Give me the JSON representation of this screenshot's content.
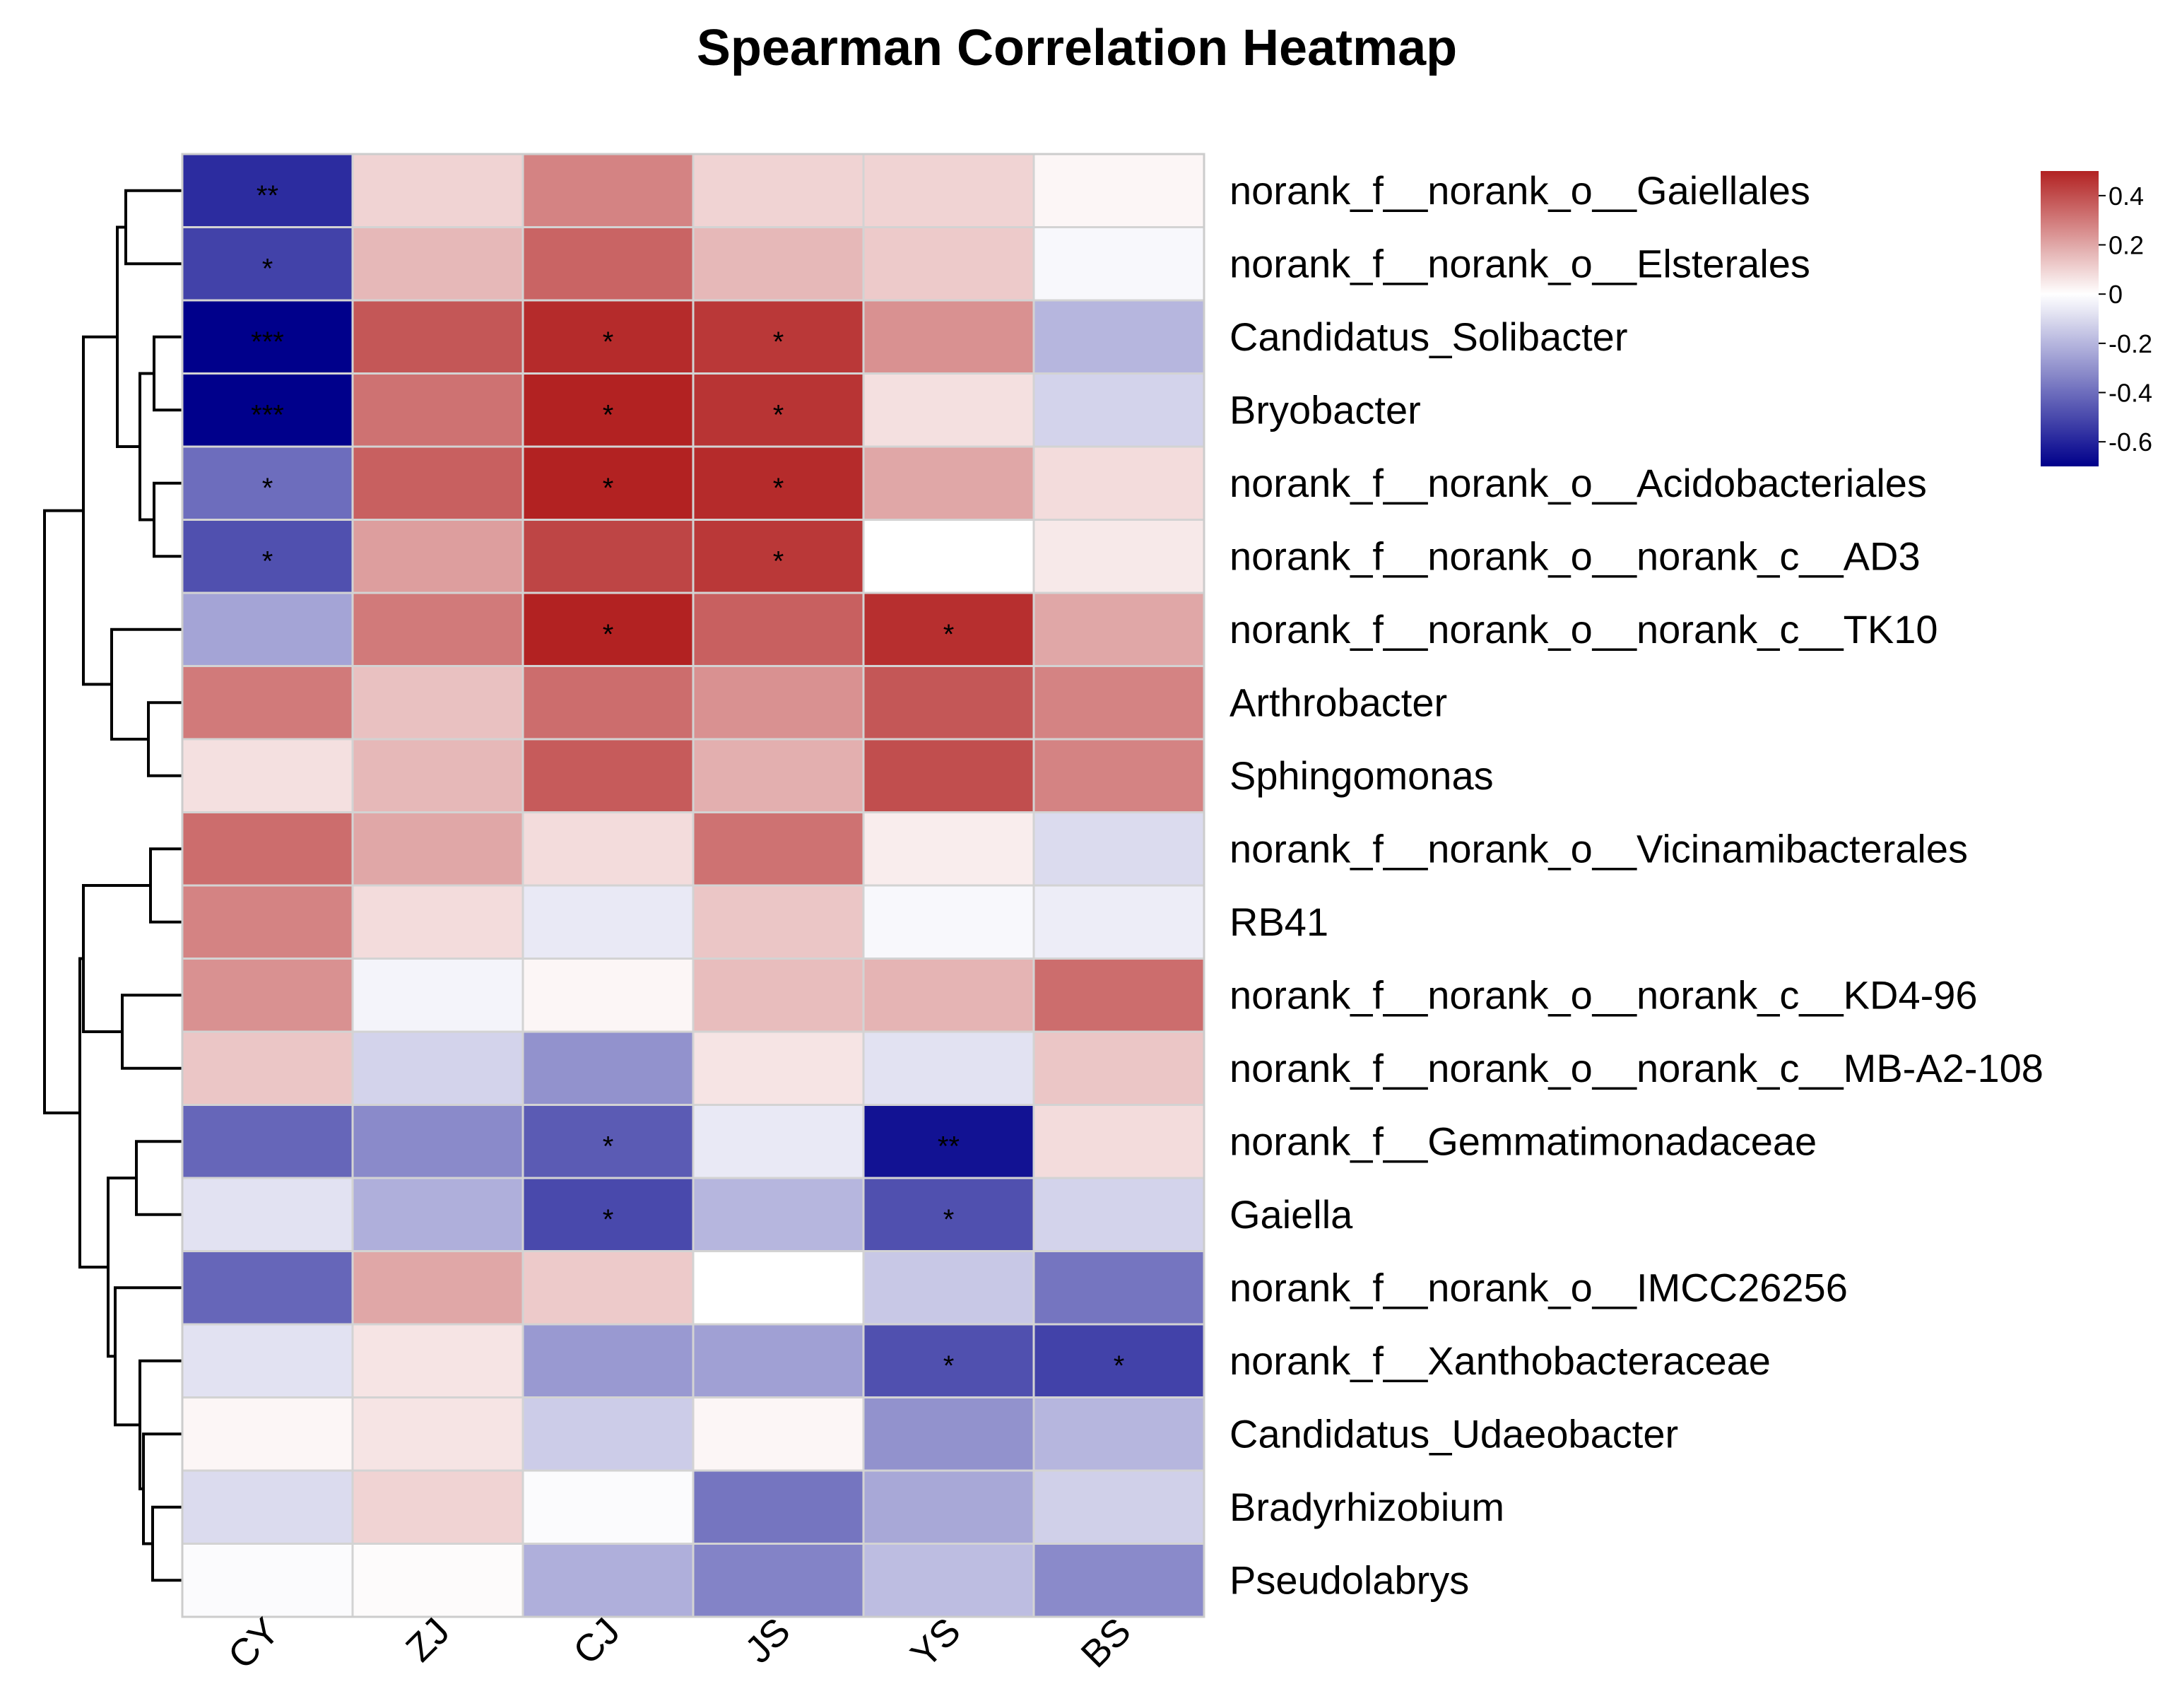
{
  "chart_data": {
    "type": "heatmap",
    "title": "Spearman Correlation Heatmap",
    "columns": [
      "CY",
      "ZJ",
      "CJ",
      "JS",
      "YS",
      "BS"
    ],
    "rows": [
      "norank_f__norank_o__Gaiellales",
      "norank_f__norank_o__Elsterales",
      "Candidatus_Solibacter",
      "Bryobacter",
      "norank_f__norank_o__Acidobacteriales",
      "norank_f__norank_o__norank_c__AD3",
      "norank_f__norank_o__norank_c__TK10",
      "Arthrobacter",
      "Sphingomonas",
      "norank_f__norank_o__Vicinamibacterales",
      "RB41",
      "norank_f__norank_o__norank_c__KD4-96",
      "norank_f__norank_o__norank_c__MB-A2-108",
      "norank_f__Gemmatimonadaceae",
      "Gaiella",
      "norank_f__norank_o__IMCC26256",
      "norank_f__Xanthobacteraceae",
      "Candidatus_Udaeobacter",
      "Bradyrhizobium",
      "Pseudolabrys"
    ],
    "values": [
      [
        -0.58,
        0.1,
        0.28,
        0.1,
        0.1,
        0.02
      ],
      [
        -0.52,
        0.16,
        0.35,
        0.16,
        0.12,
        -0.02
      ],
      [
        -0.7,
        0.38,
        0.48,
        0.45,
        0.25,
        -0.2
      ],
      [
        -0.7,
        0.32,
        0.5,
        0.46,
        0.07,
        -0.12
      ],
      [
        -0.4,
        0.36,
        0.5,
        0.48,
        0.2,
        0.08
      ],
      [
        -0.48,
        0.22,
        0.42,
        0.45,
        0.0,
        0.05
      ],
      [
        -0.25,
        0.3,
        0.5,
        0.36,
        0.47,
        0.2
      ],
      [
        0.3,
        0.14,
        0.33,
        0.25,
        0.38,
        0.28
      ],
      [
        0.07,
        0.16,
        0.37,
        0.18,
        0.4,
        0.28
      ],
      [
        0.33,
        0.2,
        0.08,
        0.32,
        0.04,
        -0.1
      ],
      [
        0.28,
        0.08,
        -0.06,
        0.13,
        -0.02,
        -0.05
      ],
      [
        0.25,
        -0.03,
        0.02,
        0.15,
        0.17,
        0.33
      ],
      [
        0.13,
        -0.12,
        -0.3,
        0.06,
        -0.08,
        0.13
      ],
      [
        -0.42,
        -0.32,
        -0.45,
        -0.06,
        -0.65,
        0.08
      ],
      [
        -0.08,
        -0.22,
        -0.5,
        -0.2,
        -0.48,
        -0.12
      ],
      [
        -0.42,
        0.2,
        0.12,
        0.0,
        -0.15,
        -0.38
      ],
      [
        -0.08,
        0.06,
        -0.28,
        -0.26,
        -0.48,
        -0.52
      ],
      [
        0.02,
        0.06,
        -0.14,
        0.02,
        -0.3,
        -0.2
      ],
      [
        -0.1,
        0.1,
        -0.01,
        -0.38,
        -0.24,
        -0.13
      ],
      [
        -0.01,
        0.01,
        -0.22,
        -0.34,
        -0.18,
        -0.32
      ]
    ],
    "significance": [
      [
        "**",
        "",
        "",
        "",
        "",
        ""
      ],
      [
        "*",
        "",
        "",
        "",
        "",
        ""
      ],
      [
        "***",
        "",
        "*",
        "*",
        "",
        ""
      ],
      [
        "***",
        "",
        "*",
        "*",
        "",
        ""
      ],
      [
        "*",
        "",
        "*",
        "*",
        "",
        ""
      ],
      [
        "*",
        "",
        "",
        "*",
        "",
        ""
      ],
      [
        "",
        "",
        "*",
        "",
        "*",
        ""
      ],
      [
        "",
        "",
        "",
        "",
        "",
        ""
      ],
      [
        "",
        "",
        "",
        "",
        "",
        ""
      ],
      [
        "",
        "",
        "",
        "",
        "",
        ""
      ],
      [
        "",
        "",
        "",
        "",
        "",
        ""
      ],
      [
        "",
        "",
        "",
        "",
        "",
        ""
      ],
      [
        "",
        "",
        "",
        "",
        "",
        ""
      ],
      [
        "",
        "",
        "*",
        "",
        "**",
        ""
      ],
      [
        "",
        "",
        "*",
        "",
        "*",
        ""
      ],
      [
        "",
        "",
        "",
        "",
        "",
        ""
      ],
      [
        "",
        "",
        "",
        "",
        "*",
        "*"
      ],
      [
        "",
        "",
        "",
        "",
        "",
        ""
      ],
      [
        "",
        "",
        "",
        "",
        "",
        ""
      ],
      [
        "",
        "",
        "",
        "",
        "",
        ""
      ]
    ],
    "colorbar": {
      "ticks": [
        "0.4",
        "0.2",
        "0",
        "-0.2",
        "-0.4",
        "-0.6"
      ],
      "tick_values": [
        0.4,
        0.2,
        0,
        -0.2,
        -0.4,
        -0.6
      ],
      "range": [
        -0.7,
        0.5
      ],
      "colors": {
        "low": "#00008b",
        "mid": "#ffffff",
        "high": "#b22222"
      },
      "placement": "top-right"
    },
    "dendrogram": "rows, left"
  }
}
